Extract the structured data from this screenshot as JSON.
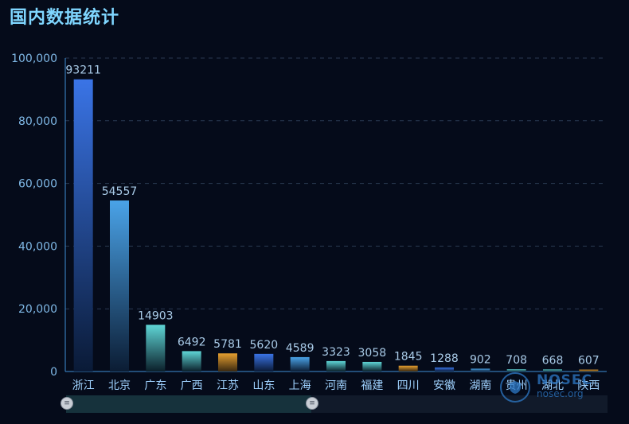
{
  "title": "国内数据统计",
  "chart_data": {
    "type": "bar",
    "title": "国内数据统计",
    "categories": [
      "浙江",
      "北京",
      "广东",
      "广西",
      "江苏",
      "山东",
      "上海",
      "河南",
      "福建",
      "四川",
      "安徽",
      "湖南",
      "贵州",
      "湖北",
      "陕西"
    ],
    "values": [
      93211,
      54557,
      14903,
      6492,
      5781,
      5620,
      4589,
      3323,
      3058,
      1845,
      1288,
      902,
      708,
      668,
      607
    ],
    "ylim": [
      0,
      100000
    ],
    "yticks": [
      "0",
      "20,000",
      "40,000",
      "60,000",
      "80,000",
      "100,000"
    ],
    "ytick_values": [
      0,
      20000,
      40000,
      60000,
      80000,
      100000
    ],
    "grid": true,
    "bar_colors": [
      [
        "#3a74e6",
        "#0a1a36"
      ],
      [
        "#4aa3e8",
        "#0b1c33"
      ],
      [
        "#5fd6d6",
        "#0b1f2a"
      ],
      [
        "#5fd6d6",
        "#0b1f2a"
      ],
      [
        "#e6a030",
        "#3a2810"
      ],
      [
        "#3a74e6",
        "#0a1a36"
      ],
      [
        "#4aa3e8",
        "#0b1c33"
      ],
      [
        "#5fd6d6",
        "#0b1f2a"
      ],
      [
        "#5fd6d6",
        "#0b1f2a"
      ],
      [
        "#e6a030",
        "#3a2810"
      ],
      [
        "#3a74e6",
        "#0a1a36"
      ],
      [
        "#4aa3e8",
        "#0b1c33"
      ],
      [
        "#5fd6d6",
        "#0b1f2a"
      ],
      [
        "#5fd6d6",
        "#0b1f2a"
      ],
      [
        "#e6a030",
        "#3a2810"
      ]
    ]
  },
  "watermark": {
    "name": "NOSEC",
    "url": "nosec.org"
  }
}
